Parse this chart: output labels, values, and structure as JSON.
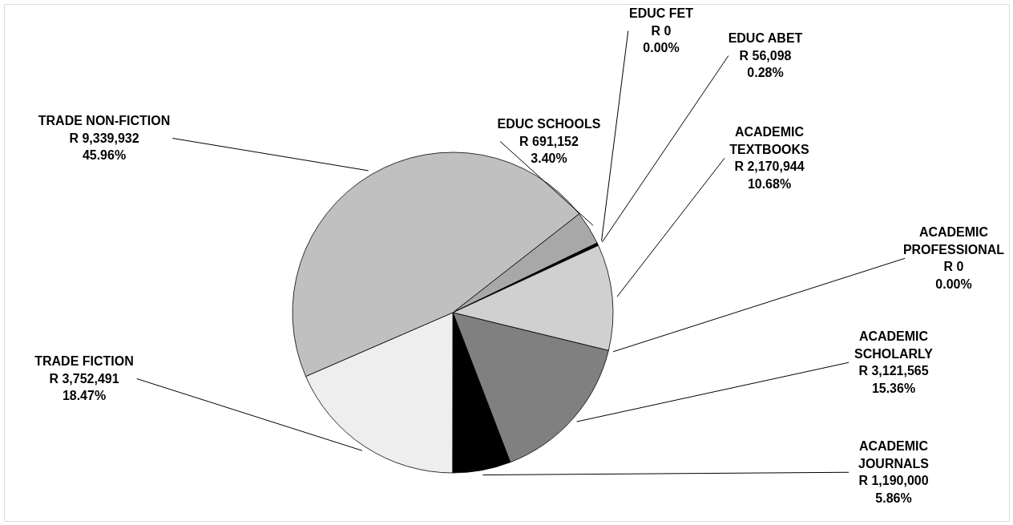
{
  "chart_data": {
    "type": "pie",
    "categories": [
      "EDUC SCHOOLS",
      "EDUC FET",
      "EDUC ABET",
      "ACADEMIC TEXTBOOKS",
      "ACADEMIC PROFESSIONAL",
      "ACADEMIC SCHOLARLY",
      "ACADEMIC JOURNALS",
      "TRADE FICTION",
      "TRADE NON-FICTION"
    ],
    "values": [
      691152,
      0,
      56098,
      2170944,
      0,
      3121565,
      1190000,
      3752491,
      9339932
    ],
    "value_labels": [
      "R 691,152\n3.40%",
      "R 0\n0.00%",
      "R 56,098\n0.28%",
      "R 2,170,944\n10.68%",
      "R 0\n0.00%",
      "R 3,121,565\n15.36%",
      "R 1,190,000\n5.86%",
      "R 3,752,491\n18.47%",
      "R 9,339,932\n45.96%"
    ],
    "colors": [
      "#a8a8a8",
      "#606060",
      "#000000",
      "#d0d0d0",
      "#404040",
      "#808080",
      "#000000",
      "#eeeeee",
      "#c0c0c0"
    ],
    "legend": false
  }
}
